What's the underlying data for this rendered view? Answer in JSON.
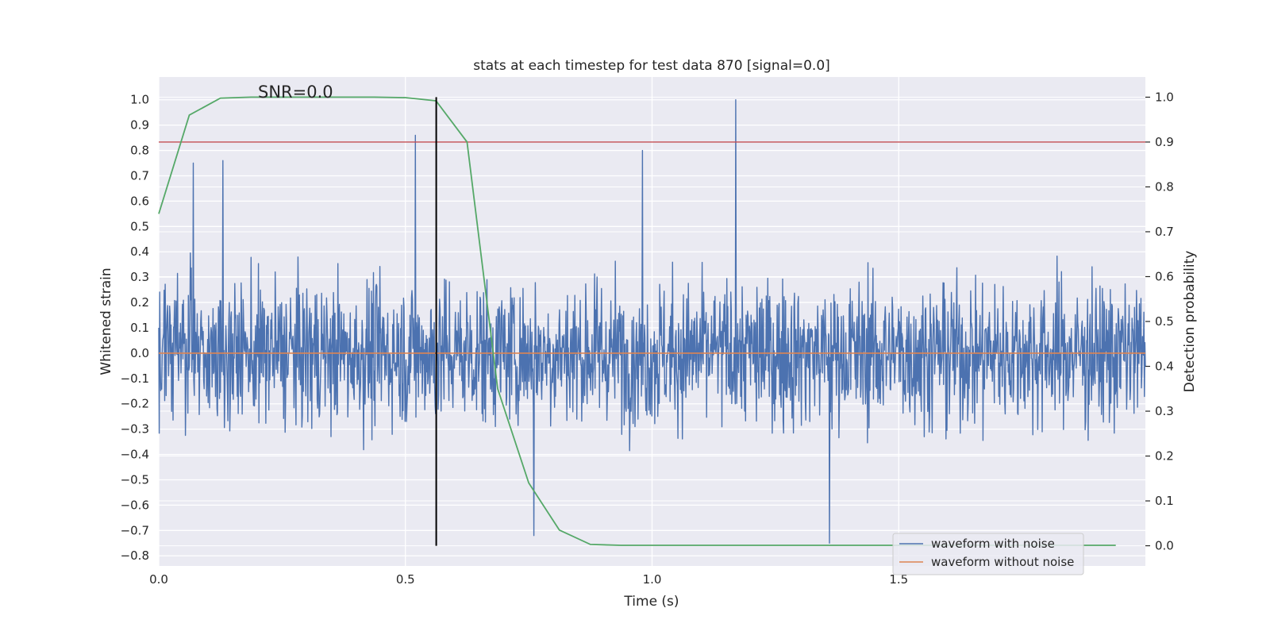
{
  "chart_data": {
    "type": "line",
    "title": "stats at each timestep for test data 870 [signal=0.0]",
    "xlabel": "Time (s)",
    "ylabel_left": "Whitened strain",
    "ylabel_right": "Detection probability",
    "xlim": [
      0.0,
      2.0
    ],
    "ylim_left": [
      -0.84,
      1.09
    ],
    "ylim_right": [
      -0.045,
      1.045
    ],
    "x_ticks": [
      "0.0",
      "0.5",
      "1.0",
      "1.5"
    ],
    "x_tick_values": [
      0.0,
      0.5,
      1.0,
      1.5
    ],
    "y_left_ticks": [
      "1.0",
      "0.9",
      "0.8",
      "0.7",
      "0.6",
      "0.5",
      "0.4",
      "0.3",
      "0.2",
      "0.1",
      "0.0",
      "−0.1",
      "−0.2",
      "−0.3",
      "−0.4",
      "−0.5",
      "−0.6",
      "−0.7",
      "−0.8"
    ],
    "y_left_tick_values": [
      1.0,
      0.9,
      0.8,
      0.7,
      0.6,
      0.5,
      0.4,
      0.3,
      0.2,
      0.1,
      0.0,
      -0.1,
      -0.2,
      -0.3,
      -0.4,
      -0.5,
      -0.6,
      -0.7,
      -0.8
    ],
    "y_right_ticks": [
      "1.0",
      "0.9",
      "0.8",
      "0.7",
      "0.6",
      "0.5",
      "0.4",
      "0.3",
      "0.2",
      "0.1",
      "0.0"
    ],
    "y_right_tick_values": [
      1.0,
      0.9,
      0.8,
      0.7,
      0.6,
      0.5,
      0.4,
      0.3,
      0.2,
      0.1,
      0.0
    ],
    "annotation": "SNR=0.0",
    "annotation_position": "upper-left",
    "series": [
      {
        "name": "waveform with noise",
        "color": "#4c72b0",
        "axis": "left",
        "description": "dense whitened noise, approx. 2000 samples, amplitude mostly within ±0.6, peak 1.0 near t=1.17",
        "spikes": [
          {
            "x": 0.52,
            "y": 0.86
          },
          {
            "x": 0.98,
            "y": 0.8
          },
          {
            "x": 1.17,
            "y": 1.0
          },
          {
            "x": 1.36,
            "y": -0.75
          },
          {
            "x": 0.07,
            "y": 0.75
          },
          {
            "x": 0.13,
            "y": 0.76
          },
          {
            "x": 0.76,
            "y": -0.72
          }
        ]
      },
      {
        "name": "waveform without noise",
        "color": "#dd8452",
        "axis": "left",
        "x": [
          0.0,
          2.0
        ],
        "y": [
          0.0,
          0.0
        ]
      },
      {
        "name": "detection probability",
        "color": "#55a868",
        "axis": "right",
        "x": [
          0.0,
          0.062,
          0.125,
          0.187,
          0.25,
          0.312,
          0.375,
          0.437,
          0.5,
          0.562,
          0.625,
          0.687,
          0.75,
          0.812,
          0.875,
          0.937,
          1.0,
          1.5,
          1.94
        ],
        "y": [
          0.74,
          0.96,
          0.998,
          1.0,
          1.0,
          1.0,
          1.0,
          1.0,
          0.999,
          0.992,
          0.9,
          0.35,
          0.14,
          0.035,
          0.003,
          0.001,
          0.001,
          0.001,
          0.001
        ]
      }
    ],
    "threshold": {
      "value": 0.9,
      "axis": "right",
      "color": "#c44e52"
    },
    "vertical_marker": {
      "x": 0.5625,
      "color": "#000000",
      "y_from": 0.0,
      "y_to": 1.0,
      "axis": "right"
    },
    "legend": {
      "location": "lower-right",
      "entries": [
        {
          "label": "waveform with noise",
          "color": "#4c72b0"
        },
        {
          "label": "waveform without noise",
          "color": "#dd8452"
        }
      ]
    },
    "grid": true,
    "background": "#eaeaf2"
  }
}
